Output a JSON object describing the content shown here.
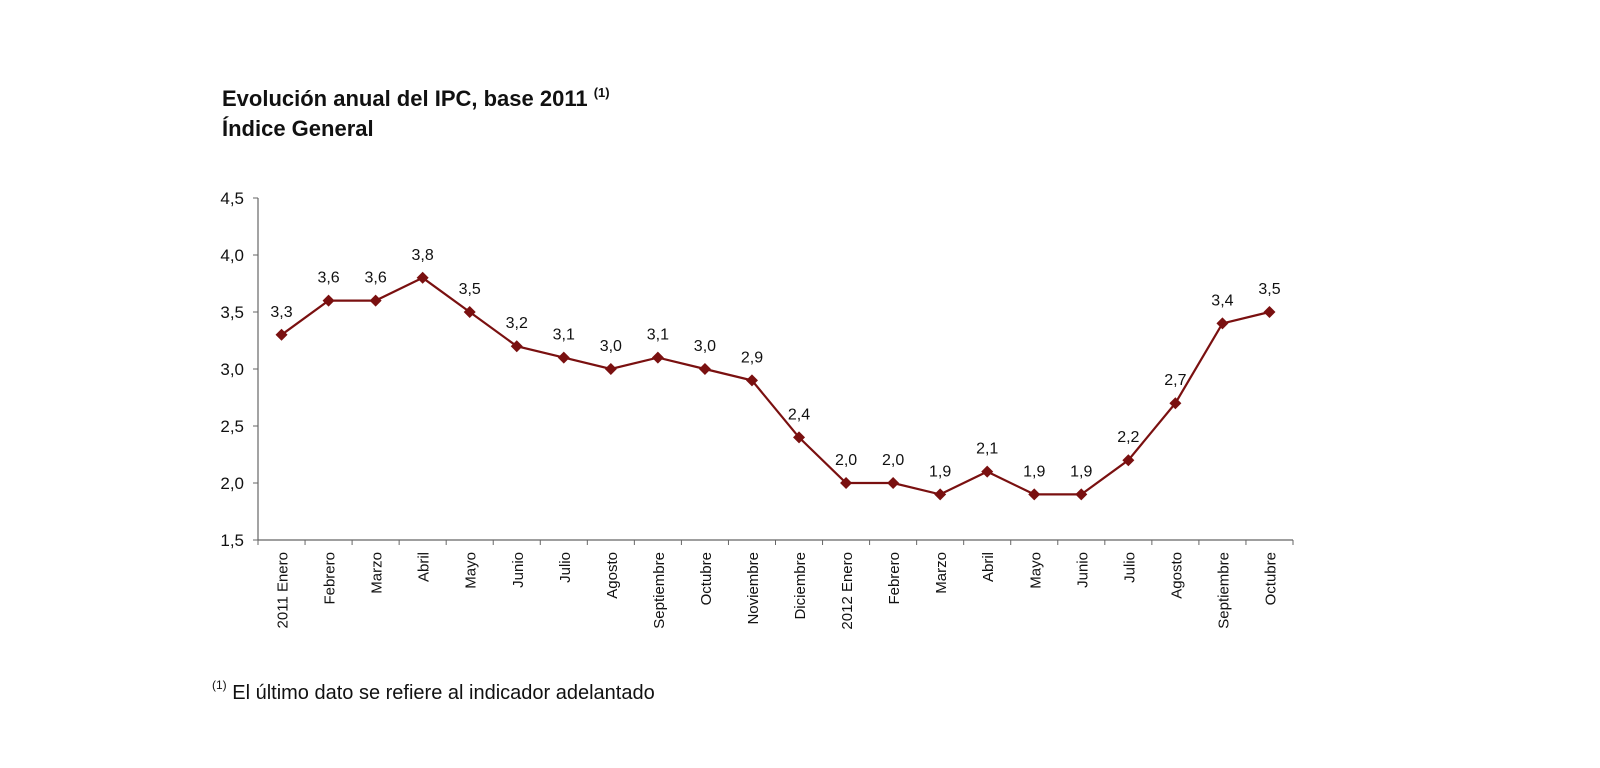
{
  "chart_data": {
    "type": "line",
    "title": "Evolución anual del IPC, base 2011",
    "title_note": "(1)",
    "subtitle": "Índice General",
    "xlabel": "",
    "ylabel": "",
    "ylim": [
      1.5,
      4.5
    ],
    "yticks": [
      "4,5",
      "4,0",
      "3,5",
      "3,0",
      "2,5",
      "2,0",
      "1,5"
    ],
    "ytick_values": [
      4.5,
      4.0,
      3.5,
      3.0,
      2.5,
      2.0,
      1.5
    ],
    "grid": false,
    "color": "#7a1010",
    "marker": "diamond",
    "categories": [
      "2011 Enero",
      "Febrero",
      "Marzo",
      "Abril",
      "Mayo",
      "Junio",
      "Julio",
      "Agosto",
      "Septiembre",
      "Octubre",
      "Noviembre",
      "Diciembre",
      "2012 Enero",
      "Febrero",
      "Marzo",
      "Abril",
      "Mayo",
      "Junio",
      "Julio",
      "Agosto",
      "Septiembre",
      "Octubre"
    ],
    "values": [
      3.3,
      3.6,
      3.6,
      3.8,
      3.5,
      3.2,
      3.1,
      3.0,
      3.1,
      3.0,
      2.9,
      2.4,
      2.0,
      2.0,
      1.9,
      2.1,
      1.9,
      1.9,
      2.2,
      2.7,
      3.4,
      3.5
    ],
    "data_labels": [
      "3,3",
      "3,6",
      "3,6",
      "3,8",
      "3,5",
      "3,2",
      "3,1",
      "3,0",
      "3,1",
      "3,0",
      "2,9",
      "2,4",
      "2,0",
      "2,0",
      "1,9",
      "2,1",
      "1,9",
      "1,9",
      "2,2",
      "2,7",
      "3,4",
      "3,5"
    ],
    "footnote_mark": "(1)",
    "footnote": "El último dato se refiere al indicador adelantado"
  }
}
